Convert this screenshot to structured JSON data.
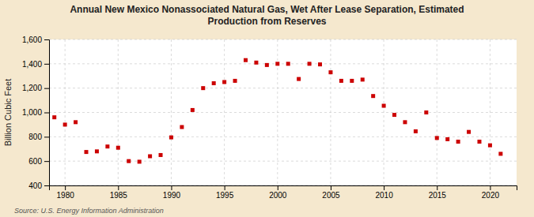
{
  "chart_data": {
    "type": "scatter",
    "title": "Annual New Mexico Nonassociated Natural Gas, Wet After Lease Separation, Estimated\nProduction from Reserves",
    "ylabel": "Billion Cubic Feet",
    "source": "Source: U.S. Energy Information Administration",
    "color": "#cc0000",
    "marker": "square",
    "x": [
      1979,
      1980,
      1981,
      1982,
      1983,
      1984,
      1985,
      1986,
      1987,
      1988,
      1989,
      1990,
      1991,
      1992,
      1993,
      1994,
      1995,
      1996,
      1997,
      1998,
      1999,
      2000,
      2001,
      2002,
      2003,
      2004,
      2005,
      2006,
      2007,
      2008,
      2009,
      2010,
      2011,
      2012,
      2013,
      2014,
      2015,
      2016,
      2017,
      2018,
      2019,
      2020,
      2021
    ],
    "values": [
      960,
      900,
      920,
      675,
      680,
      720,
      710,
      600,
      595,
      640,
      650,
      795,
      880,
      1020,
      1200,
      1240,
      1250,
      1260,
      1430,
      1410,
      1390,
      1400,
      1400,
      1275,
      1400,
      1395,
      1330,
      1260,
      1260,
      1270,
      1135,
      1055,
      980,
      920,
      845,
      1000,
      790,
      780,
      760,
      840,
      760,
      730,
      660
    ],
    "xlim": [
      1978.5,
      2022.5
    ],
    "ylim": [
      400,
      1600
    ],
    "xticks": [
      1980,
      1985,
      1990,
      1995,
      2000,
      2005,
      2010,
      2015,
      2020
    ],
    "yticks": [
      400,
      600,
      800,
      {
        "value": 1000,
        "label": "1,000"
      },
      {
        "value": 1200,
        "label": "1,200"
      },
      {
        "value": 1400,
        "label": "1,400"
      },
      {
        "value": 1600,
        "label": "1,600"
      }
    ],
    "grid": true
  }
}
